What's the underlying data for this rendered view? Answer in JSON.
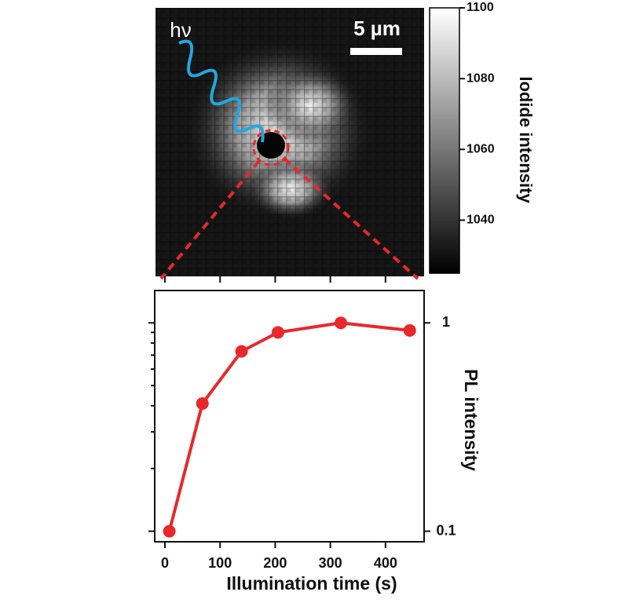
{
  "image": {
    "label": "hν",
    "scale_bar": "5 µm",
    "colorbar": {
      "title": "Iodide intensity",
      "lim": [
        1025,
        1100
      ],
      "ticks": [
        1040,
        1060,
        1080,
        1100
      ]
    }
  },
  "chart_data": {
    "type": "line",
    "xlabel": "Illumination time (s)",
    "ylabel": "PL intensity",
    "x": [
      8,
      68,
      139,
      205,
      319,
      444
    ],
    "series": [
      {
        "color": "#e8282b",
        "values": [
          0.1,
          0.41,
          0.73,
          0.9,
          1.0,
          0.92
        ]
      }
    ],
    "xlim": [
      -18.5,
      470
    ],
    "xticks": [
      0,
      100,
      200,
      300,
      400
    ],
    "ylim": [
      0.089,
      1.43
    ],
    "yscale": "log",
    "yticks": [
      0.1,
      1
    ],
    "yminor_ticks": [
      0.2,
      0.3,
      0.4,
      0.5,
      0.6,
      0.7,
      0.8,
      0.9
    ]
  }
}
